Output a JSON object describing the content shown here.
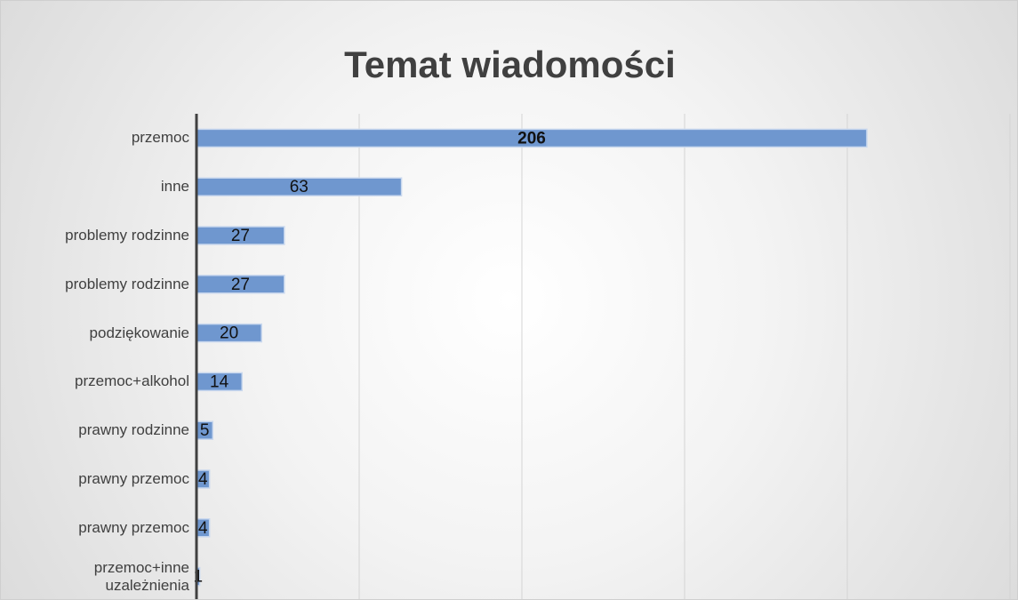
{
  "chart_data": {
    "type": "bar",
    "orientation": "horizontal",
    "title": "Temat wiadomości",
    "categories": [
      "przemoc",
      "inne",
      "problemy rodzinne",
      "problemy rodzinne",
      "podziękowanie",
      "przemoc+alkohol",
      "prawny rodzinne",
      "prawny przemoc",
      "prawny przemoc",
      "przemoc+inne uzależnienia"
    ],
    "values": [
      206,
      63,
      27,
      27,
      20,
      14,
      5,
      4,
      4,
      1
    ],
    "color": "#6f97cf",
    "xlim": [
      0,
      250
    ],
    "xticks": [
      0,
      50,
      100,
      150,
      200,
      250
    ],
    "grid": true
  }
}
